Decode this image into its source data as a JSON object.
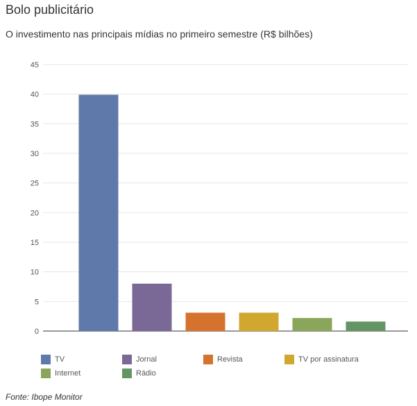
{
  "header": {
    "title": "Bolo publicitário",
    "subtitle": "O investimento nas principais mídias no primeiro semestre (R$ bilhões)"
  },
  "footer": {
    "source": "Fonte: Ibope Monitor"
  },
  "chart_data": {
    "type": "bar",
    "categories": [
      "TV",
      "Jornal",
      "Revista",
      "TV por assinatura",
      "Internet",
      "Rádio"
    ],
    "values": [
      39.9,
      8.0,
      3.1,
      3.1,
      2.2,
      1.6
    ],
    "colors": [
      "#6079ab",
      "#7a6997",
      "#d5732e",
      "#d0a830",
      "#8ba65a",
      "#639463"
    ],
    "yticks": [
      0,
      5,
      10,
      15,
      20,
      25,
      30,
      35,
      40,
      45
    ],
    "ylim": [
      0,
      45
    ],
    "grid": true,
    "legend_position": "bottom"
  }
}
